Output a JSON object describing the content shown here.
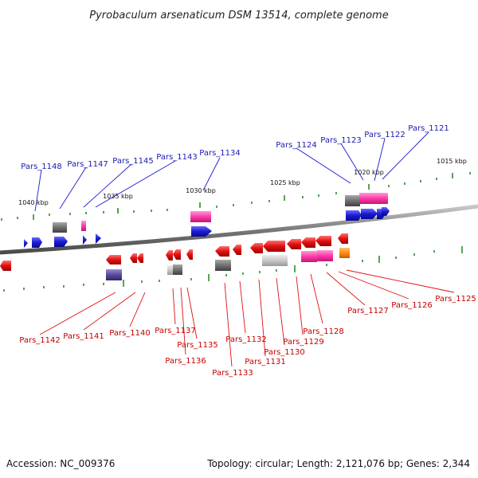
{
  "title": "Pyrobaculum arsenaticum DSM 13514, complete genome",
  "footer": {
    "accession": "Accession: NC_009376",
    "topology": "Topology: circular; Length: 2,121,076 bp; Genes: 2,344"
  },
  "colors": {
    "forward": "#1a1ad0",
    "reverse": "#e01010",
    "pink": "#ff3aa8",
    "gray": "#707070",
    "lightgray": "#bdbdbd",
    "purple": "#5a4a9a",
    "orange": "#ff8c10",
    "tick": "#2e8b2e",
    "top_label": "#1a1ab0",
    "bottom_label": "#c40000",
    "backbone": "#808080"
  },
  "scale_labels": [
    "1040 kbp",
    "1035 kbp",
    "1030 kbp",
    "1025 kbp",
    "1020 kbp",
    "1015 kbp"
  ],
  "top_labels": [
    "Pars_1148",
    "Pars_1147",
    "Pars_1145",
    "Pars_1143",
    "Pars_1134",
    "Pars_1124",
    "Pars_1123",
    "Pars_1122",
    "Pars_1121"
  ],
  "bottom_labels": [
    "Pars_1142",
    "Pars_1141",
    "Pars_1140",
    "Pars_1137",
    "Pars_1135",
    "Pars_1136",
    "Pars_1133",
    "Pars_1132",
    "Pars_1131",
    "Pars_1130",
    "Pars_1129",
    "Pars_1128",
    "Pars_1127",
    "Pars_1126",
    "Pars_1125"
  ]
}
